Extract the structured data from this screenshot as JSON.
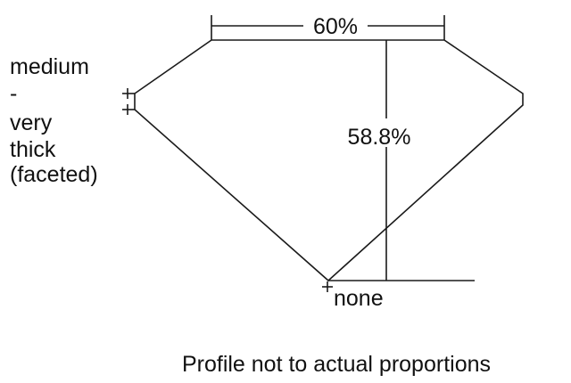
{
  "diagram": {
    "table_label": "60%",
    "depth_label": "58.8%",
    "culet_label": "none",
    "girdle_label_lines": [
      "medium",
      "-",
      "very",
      "thick",
      "(faceted)"
    ],
    "caption": "Profile not to actual proportions"
  }
}
